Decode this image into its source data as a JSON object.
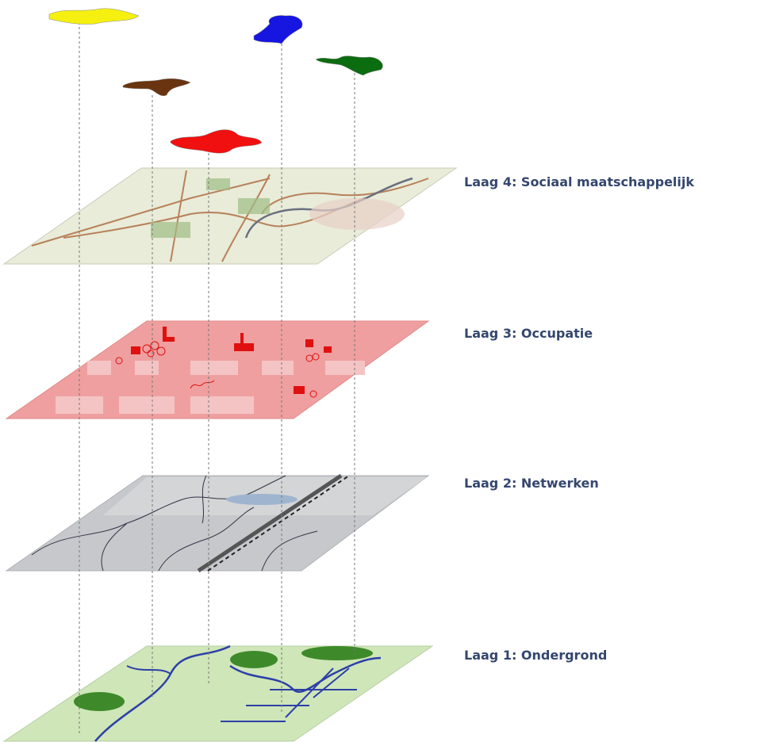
{
  "layers": [
    {
      "label": "Laag 4: Sociaal maatschappelijk"
    },
    {
      "label": "Laag 3: Occupatie"
    },
    {
      "label": "Laag 2: Netwerken"
    },
    {
      "label": "Laag 1: Ondergrond"
    }
  ]
}
